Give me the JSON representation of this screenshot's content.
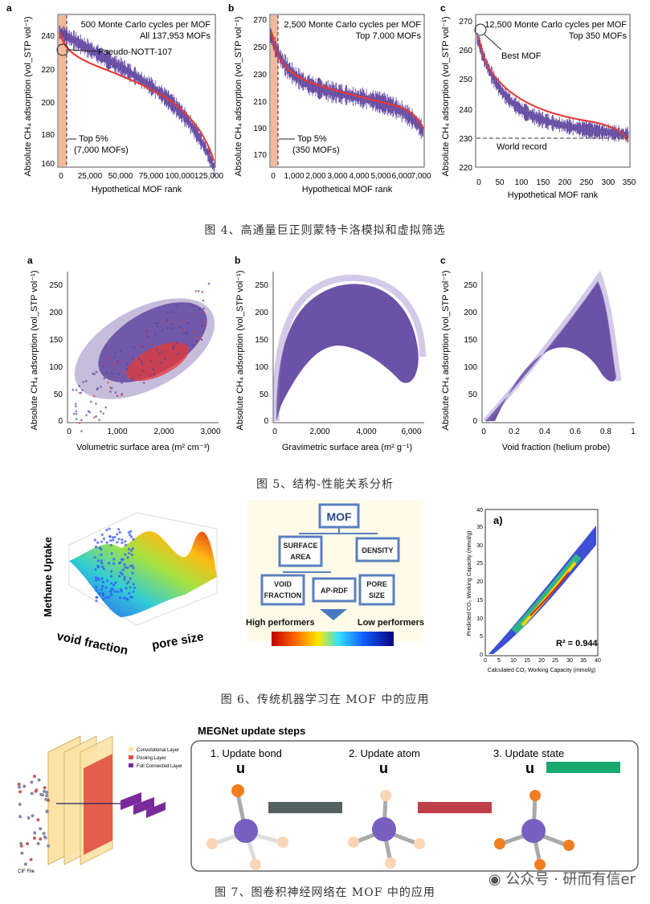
{
  "fig4": {
    "caption": "图 4、高通量巨正则蒙特卡洛模拟和虚拟筛选",
    "panels": [
      {
        "letter": "a",
        "line1": "500 Monte Carlo cycles per MOF",
        "line2": "All 137,953 MOFs",
        "annot": "Pseudo-NOTT-107",
        "top5a": "Top 5%",
        "top5b": "(7,000 MOFs)",
        "xlabel": "Hypothetical MOF rank",
        "xticks": [
          "0",
          "25,000",
          "50,000",
          "75,000",
          "100,000",
          "125,000"
        ],
        "yticks": [
          "160",
          "180",
          "200",
          "220",
          "240"
        ]
      },
      {
        "letter": "b",
        "line1": "2,500 Monte Carlo cycles per MOF",
        "line2": "Top 7,000 MOFs",
        "top5a": "Top 5%",
        "top5b": "(350 MOFs)",
        "xlabel": "Hypothetical MOF rank",
        "xticks": [
          "0",
          "1,000",
          "2,000",
          "3,000",
          "4,000",
          "5,000",
          "6,000",
          "7,000"
        ],
        "yticks": [
          "170",
          "190",
          "210",
          "230",
          "250",
          "270"
        ]
      },
      {
        "letter": "c",
        "line1": "12,500 Monte Carlo cycles per MOF",
        "line2": "Top 350 MOFs",
        "annot": "Best MOF",
        "record": "World record",
        "xlabel": "Hypothetical MOF rank",
        "xticks": [
          "0",
          "50",
          "100",
          "150",
          "200",
          "250",
          "300",
          "350"
        ],
        "yticks": [
          "220",
          "230",
          "240",
          "250",
          "260",
          "270"
        ]
      }
    ],
    "ylabel": "Absolute CH₄ adsorption (vol_STP vol⁻¹)"
  },
  "fig5": {
    "caption": "图 5、结构-性能关系分析",
    "panels": [
      {
        "letter": "a",
        "xlabel": "Volumetric surface area (m² cm⁻³)",
        "xticks": [
          "0",
          "1,000",
          "2,000",
          "3,000"
        ],
        "yticks": [
          "0",
          "50",
          "100",
          "150",
          "200",
          "250"
        ]
      },
      {
        "letter": "b",
        "xlabel": "Gravimetric surface area (m² g⁻¹)",
        "xticks": [
          "0",
          "2,000",
          "4,000",
          "6,000"
        ],
        "yticks": [
          "0",
          "50",
          "100",
          "150",
          "200",
          "250"
        ]
      },
      {
        "letter": "c",
        "xlabel": "Void fraction (helium probe)",
        "xticks": [
          "0",
          "0.2",
          "0.4",
          "0.6",
          "0.8",
          "1"
        ],
        "yticks": [
          "0",
          "50",
          "100",
          "150",
          "200",
          "250"
        ]
      }
    ],
    "ylabel": "Absolute CH₄ adsorption (vol_STP vol⁻¹)"
  },
  "fig6": {
    "caption": "图 6、传统机器学习在 MOF 中的应用",
    "surface": {
      "zlabel": "Methane Uptake",
      "xlabel": "void fraction",
      "ylabel": "pore size"
    },
    "tree": {
      "root": "MOF",
      "n1": "SURFACE AREA",
      "n2": "DENSITY",
      "n3": "VOID FRACTION",
      "n4": "AP-RDF",
      "n5": "PORE SIZE",
      "high": "High performers",
      "low": "Low performers"
    },
    "parity": {
      "label": "a)",
      "r2": "R² = 0.944",
      "xlabel": "Calculated CO₂ Working Capacity (mmol/g)",
      "ylabel": "Predicted CO₂ Working Capacity (mmol/g)",
      "ticks": [
        "0",
        "5",
        "10",
        "15",
        "20",
        "25",
        "30",
        "35",
        "40"
      ]
    }
  },
  "fig7": {
    "caption": "图 7、图卷积神经网络在 MOF 中的应用",
    "cnn": {
      "legend1": "Convolutional Layer",
      "legend2": "Pooling Layer",
      "legend3": "Full Connected Layer",
      "cif": "CIF File"
    },
    "megnet": {
      "title": "MEGNet update steps",
      "s1": "1. Update bond",
      "s2": "2. Update atom",
      "s3": "3. Update state"
    },
    "watermark": "公众号 · 研而有信er"
  },
  "colors": {
    "purple": "#5b3f9c",
    "red": "#e53935",
    "shade": "#f4b89a",
    "record": "#333333"
  }
}
